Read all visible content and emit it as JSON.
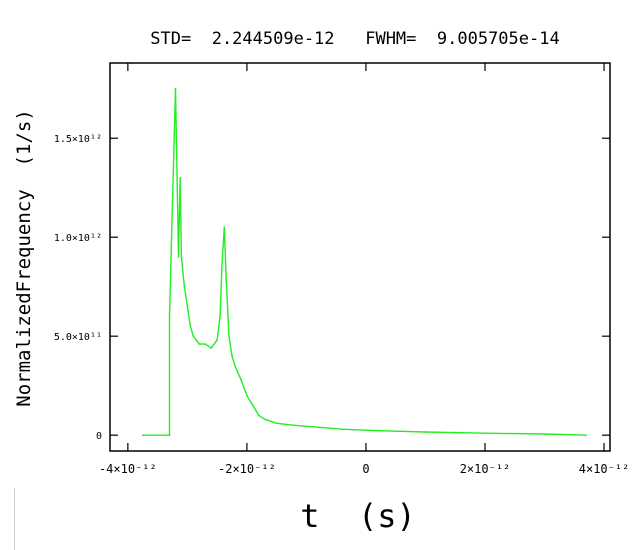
{
  "chart_data": {
    "type": "line",
    "title": "STD=  2.244509e-12   FWHM=  9.005705e-14",
    "xlabel": "t  (s)",
    "ylabel": "NormalizedFrequency  (1/s)",
    "xlim": [
      -4.3e-12,
      4.1e-12
    ],
    "ylim": [
      -80000000000.0,
      1880000000000.0
    ],
    "x_ticks": [
      {
        "value": -4e-12,
        "label": "-4×10⁻¹²"
      },
      {
        "value": -2e-12,
        "label": "-2×10⁻¹²"
      },
      {
        "value": 0,
        "label": "0"
      },
      {
        "value": 2e-12,
        "label": "2×10⁻¹²"
      },
      {
        "value": 4e-12,
        "label": "4×10⁻¹²"
      }
    ],
    "y_ticks": [
      {
        "value": 0,
        "label": "0"
      },
      {
        "value": 500000000000.0,
        "label": "5.0×10¹¹"
      },
      {
        "value": 1000000000000.0,
        "label": "1.0×10¹²"
      },
      {
        "value": 1500000000000.0,
        "label": "1.5×10¹²"
      }
    ],
    "grid": false,
    "series": [
      {
        "color": "#22ee22",
        "x": [
          -3.75e-12,
          -3.3e-12,
          -3.3e-12,
          -3.2e-12,
          -3.15e-12,
          -3.12e-12,
          -3.1e-12,
          -3.05e-12,
          -3e-12,
          -2.95e-12,
          -2.9e-12,
          -2.85e-12,
          -2.8e-12,
          -2.7e-12,
          -2.6e-12,
          -2.5e-12,
          -2.45e-12,
          -2.42e-12,
          -2.38e-12,
          -2.35e-12,
          -2.3e-12,
          -2.25e-12,
          -2.2e-12,
          -2.1e-12,
          -2e-12,
          -1.9e-12,
          -1.8e-12,
          -1.7e-12,
          -1.6e-12,
          -1.5e-12,
          -1.2e-12,
          -8e-13,
          -4e-13,
          0.0,
          5e-13,
          1e-12,
          1.5e-12,
          2e-12,
          2.5e-12,
          3e-12,
          3.5e-12,
          3.7e-12
        ],
        "y": [
          0,
          0,
          600000000000.0,
          1750000000000.0,
          900000000000.0,
          1300000000000.0,
          900000000000.0,
          750000000000.0,
          650000000000.0,
          550000000000.0,
          500000000000.0,
          480000000000.0,
          460000000000.0,
          460000000000.0,
          440000000000.0,
          480000000000.0,
          600000000000.0,
          850000000000.0,
          1050000000000.0,
          800000000000.0,
          500000000000.0,
          400000000000.0,
          350000000000.0,
          280000000000.0,
          200000000000.0,
          150000000000.0,
          100000000000.0,
          80000000000.0,
          70000000000.0,
          60000000000.0,
          50000000000.0,
          40000000000.0,
          30000000000.0,
          25000000000.0,
          20000000000.0,
          16000000000.0,
          13000000000.0,
          10000000000.0,
          8000000000.0,
          6000000000.0,
          2000000000.0,
          0
        ]
      }
    ]
  }
}
